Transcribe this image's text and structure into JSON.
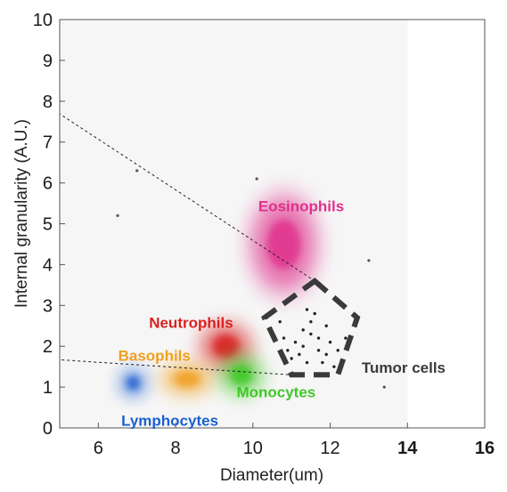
{
  "chart_data": {
    "type": "scatter",
    "xlabel": "Diameter(um)",
    "ylabel": "Internal granularity (A.U.)",
    "xlim": [
      5,
      16
    ],
    "ylim": [
      0,
      10
    ],
    "x_ticks": [
      "6",
      "8",
      "10",
      "12",
      "14",
      "16"
    ],
    "y_ticks": [
      "0",
      "1",
      "2",
      "3",
      "4",
      "5",
      "6",
      "7",
      "8",
      "9",
      "10"
    ],
    "grid": false,
    "clusters": [
      {
        "label": "Eosinophils",
        "color": "#e0308c",
        "center": [
          10.8,
          4.5
        ],
        "spread": [
          0.8,
          1.1
        ]
      },
      {
        "label": "Neutrophils",
        "color": "#d92020",
        "center": [
          9.3,
          2.0
        ],
        "spread": [
          0.6,
          0.5
        ]
      },
      {
        "label": "Basophils",
        "color": "#f0a020",
        "center": [
          8.3,
          1.2
        ],
        "spread": [
          0.6,
          0.35
        ]
      },
      {
        "label": "Monocytes",
        "color": "#3fc828",
        "center": [
          9.7,
          1.3
        ],
        "spread": [
          0.5,
          0.45
        ]
      },
      {
        "label": "Lymphocytes",
        "color": "#1a5fd0",
        "center": [
          6.9,
          1.1
        ],
        "spread": [
          0.3,
          0.3
        ]
      }
    ],
    "tumor_label": "Tumor cells",
    "tumor_color": "#3a3a3a",
    "tumor_region": [
      [
        11.6,
        3.6
      ],
      [
        12.7,
        2.7
      ],
      [
        12.2,
        1.3
      ],
      [
        11.0,
        1.3
      ],
      [
        10.3,
        2.7
      ]
    ],
    "tumor_points": [
      [
        11.1,
        2.1
      ],
      [
        11.3,
        2.0
      ],
      [
        11.5,
        2.3
      ],
      [
        11.7,
        1.9
      ],
      [
        11.9,
        2.5
      ],
      [
        11.2,
        1.8
      ],
      [
        11.6,
        2.8
      ],
      [
        12.0,
        2.1
      ],
      [
        11.4,
        1.6
      ],
      [
        10.8,
        2.2
      ],
      [
        11.8,
        1.6
      ],
      [
        12.2,
        1.9
      ],
      [
        11.0,
        1.7
      ],
      [
        11.5,
        2.6
      ],
      [
        10.9,
        1.9
      ],
      [
        11.3,
        2.4
      ],
      [
        12.4,
        2.2
      ],
      [
        11.7,
        2.2
      ],
      [
        12.1,
        1.5
      ],
      [
        11.4,
        2.9
      ],
      [
        10.7,
        2.6
      ],
      [
        11.9,
        1.8
      ]
    ],
    "outlier_points": [
      [
        10.1,
        6.1
      ],
      [
        13.0,
        4.1
      ],
      [
        7.0,
        6.3
      ],
      [
        6.5,
        5.2
      ],
      [
        13.4,
        1.0
      ]
    ],
    "dashed_lines": [
      {
        "from": [
          4.5,
          8.0
        ],
        "to": [
          11.6,
          3.6
        ]
      },
      {
        "from": [
          4.5,
          1.7
        ],
        "to": [
          11.0,
          1.3
        ]
      }
    ]
  }
}
